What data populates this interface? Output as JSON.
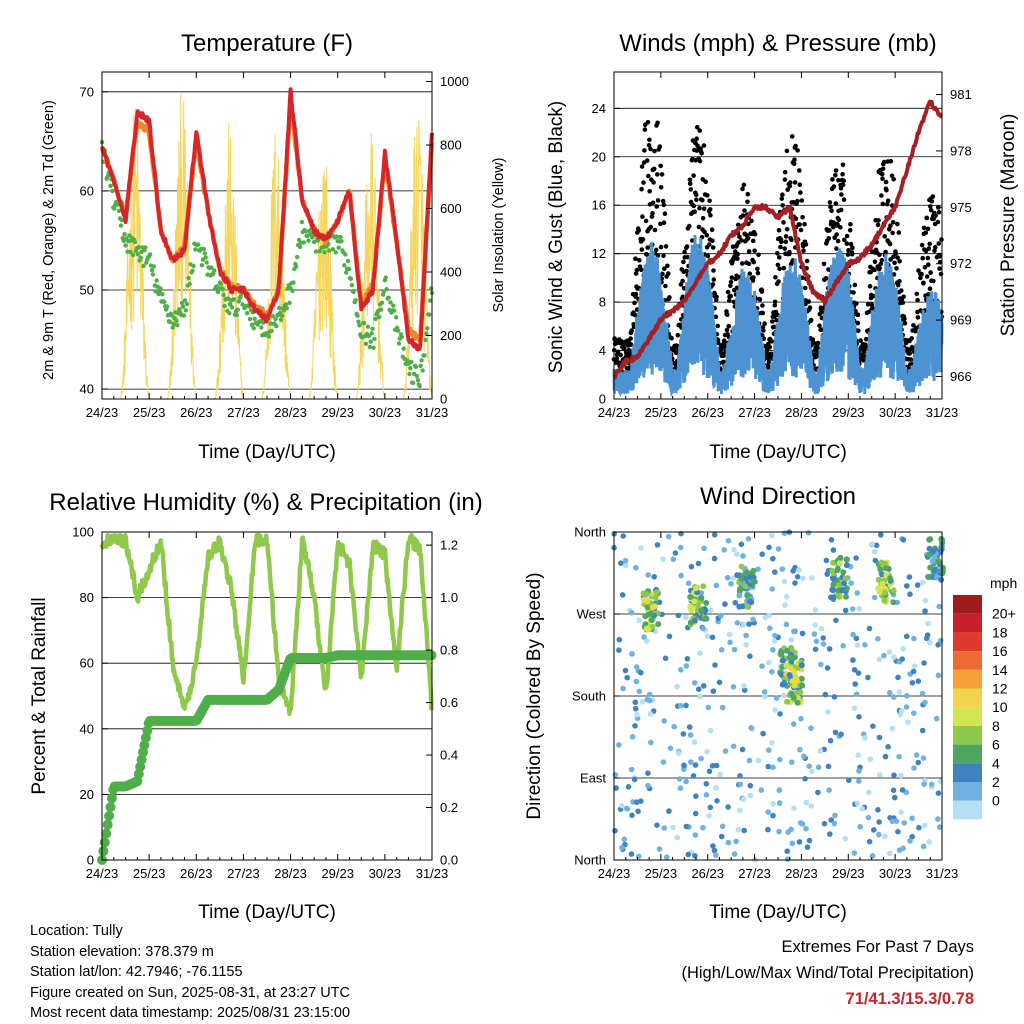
{
  "panels": {
    "temperature": {
      "title": "Temperature (F)",
      "xlabel": "Time (Day/UTC)",
      "ylabel_left": "2m & 9m T (Red, Orange) & 2m Td (Green)",
      "ylabel_right": "Solar Insolation (Yellow)"
    },
    "winds": {
      "title": "Winds (mph) & Pressure (mb)",
      "xlabel": "Time (Day/UTC)",
      "ylabel_left": "Sonic Wind & Gust (Blue, Black)",
      "ylabel_right": "Station Pressure (Maroon)"
    },
    "humidity": {
      "title": "Relative Humidity (%) & Precipitation (in)",
      "xlabel": "Time (Day/UTC)",
      "ylabel_left": "Percent & Total Rainfall"
    },
    "direction": {
      "title": "Wind Direction",
      "xlabel": "Time (Day/UTC)",
      "ylabel_left": "Direction (Colored By Speed)",
      "legend_title": "mph",
      "legend_labels": [
        "20+",
        "18",
        "16",
        "14",
        "12",
        "10",
        "8",
        "6",
        "4",
        "2",
        "0"
      ],
      "legend_colors": [
        "#9e1b1b",
        "#c8202a",
        "#df3a2e",
        "#ee6a30",
        "#f5a03b",
        "#f2d34a",
        "#d3e54e",
        "#8fc84b",
        "#4ea660",
        "#3f82c2",
        "#6fb2e2",
        "#b5dff5"
      ]
    }
  },
  "chart_data": [
    {
      "type": "line",
      "title": "Temperature (F)",
      "xlabel": "Time (Day/UTC)",
      "ylabel": "2m & 9m T (Red, Orange) & 2m Td (Green)",
      "ylabel_right": "Solar Insolation (Yellow)",
      "x_ticks": [
        "24/23",
        "25/23",
        "26/23",
        "27/23",
        "28/23",
        "29/23",
        "30/23",
        "31/23"
      ],
      "ylim": [
        39,
        72
      ],
      "y_ticks": [
        40,
        50,
        60,
        70
      ],
      "ylim_right": [
        0,
        1030
      ],
      "y_ticks_right": [
        0,
        200,
        400,
        600,
        800,
        1000
      ],
      "x": [
        0,
        0.25,
        0.5,
        0.75,
        1,
        1.25,
        1.5,
        1.75,
        2,
        2.25,
        2.5,
        2.75,
        3,
        3.25,
        3.5,
        3.75,
        4,
        4.25,
        4.5,
        4.75,
        5,
        5.25,
        5.5,
        5.75,
        6,
        6.25,
        6.5,
        6.75,
        7
      ],
      "series": [
        {
          "name": "2m T",
          "color": "#d7262b",
          "values": [
            64.5,
            61,
            57,
            68,
            67,
            56,
            53,
            54,
            66,
            58,
            52,
            50,
            50,
            48,
            47,
            50,
            70,
            59,
            56,
            55,
            57,
            60,
            48,
            50,
            64,
            55,
            45,
            44,
            66
          ]
        },
        {
          "name": "9m T",
          "color": "#f0862b",
          "values": [
            64.5,
            61,
            57.5,
            67,
            66,
            56,
            53,
            54.5,
            65,
            58,
            52,
            50.5,
            50,
            48.5,
            47.5,
            50,
            69,
            59,
            56,
            55,
            57,
            60,
            48.5,
            50.5,
            63,
            55,
            46,
            45,
            65
          ]
        },
        {
          "name": "2m Td",
          "color": "#4fae49",
          "values": [
            64.5,
            59,
            55,
            54,
            53,
            49,
            47,
            48,
            55,
            52,
            50,
            48,
            49,
            47,
            46,
            47,
            50,
            56,
            55,
            54,
            55,
            52,
            46,
            45,
            51,
            46,
            42,
            41,
            50
          ]
        },
        {
          "name": "Solar Insolation",
          "axis": "right",
          "color": "#f5d65a",
          "peaks": [
            0.7,
            1.7,
            2.7,
            3.7,
            4.7,
            5.7,
            6.7
          ],
          "peak_values": [
            950,
            980,
            880,
            900,
            850,
            870,
            980
          ]
        }
      ]
    },
    {
      "type": "scatter",
      "title": "Winds (mph) & Pressure (mb)",
      "xlabel": "Time (Day/UTC)",
      "ylabel": "Sonic Wind & Gust (Blue, Black)",
      "ylabel_right": "Station Pressure (Maroon)",
      "x_ticks": [
        "24/23",
        "25/23",
        "26/23",
        "27/23",
        "28/23",
        "29/23",
        "30/23",
        "31/23"
      ],
      "ylim": [
        0,
        27
      ],
      "y_ticks": [
        0,
        4,
        8,
        12,
        16,
        20,
        24
      ],
      "ylim_right": [
        964.8,
        982.2
      ],
      "y_ticks_right": [
        966,
        969,
        972,
        975,
        978,
        981
      ],
      "x": [
        0,
        0.25,
        0.5,
        0.75,
        1,
        1.25,
        1.5,
        1.75,
        2,
        2.25,
        2.5,
        2.75,
        3,
        3.25,
        3.5,
        3.75,
        4,
        4.25,
        4.5,
        4.75,
        5,
        5.25,
        5.5,
        5.75,
        6,
        6.25,
        6.5,
        6.75,
        7
      ],
      "series": [
        {
          "name": "Station Pressure",
          "axis": "right",
          "color": "#a52022",
          "values": [
            966,
            966.8,
            967,
            968,
            969,
            969.5,
            970,
            971,
            972,
            972.5,
            973.5,
            974,
            975,
            975,
            974.5,
            975,
            972,
            970.5,
            970,
            971,
            972,
            972.3,
            973,
            974,
            975,
            977,
            979,
            980.6,
            979.8
          ]
        },
        {
          "name": "Sonic Wind",
          "color": "#4d93d1",
          "daily_peaks": [
            0.8,
            1.8,
            2.8,
            3.8,
            4.8,
            5.8,
            6.8
          ],
          "peak_values": [
            13,
            14,
            11,
            12,
            13,
            12,
            9
          ]
        },
        {
          "name": "Gust",
          "color": "#000000",
          "daily_peaks": [
            0.8,
            1.8,
            2.8,
            3.8,
            4.8,
            5.8,
            6.8
          ],
          "peak_values": [
            25,
            23,
            18,
            22,
            20,
            21,
            17
          ]
        }
      ]
    },
    {
      "type": "line",
      "title": "Relative Humidity (%) & Precipitation (in)",
      "xlabel": "Time (Day/UTC)",
      "ylabel": "Percent & Total Rainfall",
      "x_ticks": [
        "24/23",
        "25/23",
        "26/23",
        "27/23",
        "28/23",
        "29/23",
        "30/23",
        "31/23"
      ],
      "ylim": [
        0,
        100
      ],
      "y_ticks": [
        0,
        20,
        40,
        60,
        80,
        100
      ],
      "ylim_right": [
        0,
        1.25
      ],
      "y_ticks_right": [
        "0.0",
        "0.2",
        "0.4",
        "0.6",
        "0.8",
        "1.0",
        "1.2"
      ],
      "x": [
        0,
        0.25,
        0.5,
        0.75,
        1,
        1.25,
        1.5,
        1.75,
        2,
        2.25,
        2.5,
        2.75,
        3,
        3.25,
        3.5,
        3.75,
        4,
        4.25,
        4.5,
        4.75,
        5,
        5.25,
        5.5,
        5.75,
        6,
        6.25,
        6.5,
        6.75,
        7
      ],
      "series": [
        {
          "name": "Relative Humidity",
          "color": "#8fc84b",
          "values": [
            97,
            98,
            97,
            80,
            88,
            98,
            60,
            45,
            60,
            92,
            97,
            82,
            55,
            98,
            97,
            55,
            45,
            98,
            80,
            50,
            97,
            90,
            55,
            96,
            93,
            58,
            98,
            95,
            45
          ]
        },
        {
          "name": "Total Precipitation",
          "axis": "right",
          "color": "#4fae49",
          "values": [
            0,
            0.28,
            0.28,
            0.3,
            0.53,
            0.53,
            0.53,
            0.53,
            0.53,
            0.61,
            0.61,
            0.61,
            0.61,
            0.61,
            0.61,
            0.65,
            0.77,
            0.77,
            0.77,
            0.77,
            0.78,
            0.78,
            0.78,
            0.78,
            0.78,
            0.78,
            0.78,
            0.78,
            0.78
          ]
        }
      ]
    },
    {
      "type": "scatter",
      "title": "Wind Direction",
      "xlabel": "Time (Day/UTC)",
      "ylabel": "Direction (Colored By Speed)",
      "x_ticks": [
        "24/23",
        "25/23",
        "26/23",
        "27/23",
        "28/23",
        "29/23",
        "30/23",
        "31/23"
      ],
      "y_ticks": [
        "North",
        "East",
        "South",
        "West",
        "North"
      ],
      "ylim": [
        0,
        360
      ],
      "legend_title": "mph",
      "clusters": [
        {
          "x": 0.8,
          "direction": 275,
          "speed": 11
        },
        {
          "x": 1.8,
          "direction": 280,
          "speed": 10
        },
        {
          "x": 2.8,
          "direction": 300,
          "speed": 7
        },
        {
          "x": 3.7,
          "direction": 210,
          "speed": 8
        },
        {
          "x": 3.85,
          "direction": 195,
          "speed": 12
        },
        {
          "x": 4.8,
          "direction": 310,
          "speed": 9
        },
        {
          "x": 5.8,
          "direction": 305,
          "speed": 10
        },
        {
          "x": 6.85,
          "direction": 330,
          "speed": 6
        }
      ]
    }
  ],
  "info": {
    "location": "Location: Tully",
    "elevation": "Station elevation: 378.379 m",
    "latlon": "Station lat/lon: 42.7946; -76.1155",
    "created": "Figure created on Sun, 2025-08-31, at 23:27 UTC",
    "recent": "Most recent data timestamp: 2025/08/31 23:15:00"
  },
  "extremes": {
    "line1": "Extremes For Past 7 Days",
    "line2": "(High/Low/Max Wind/Total Precipitation)",
    "values": "71/41.3/15.3/0.78"
  }
}
